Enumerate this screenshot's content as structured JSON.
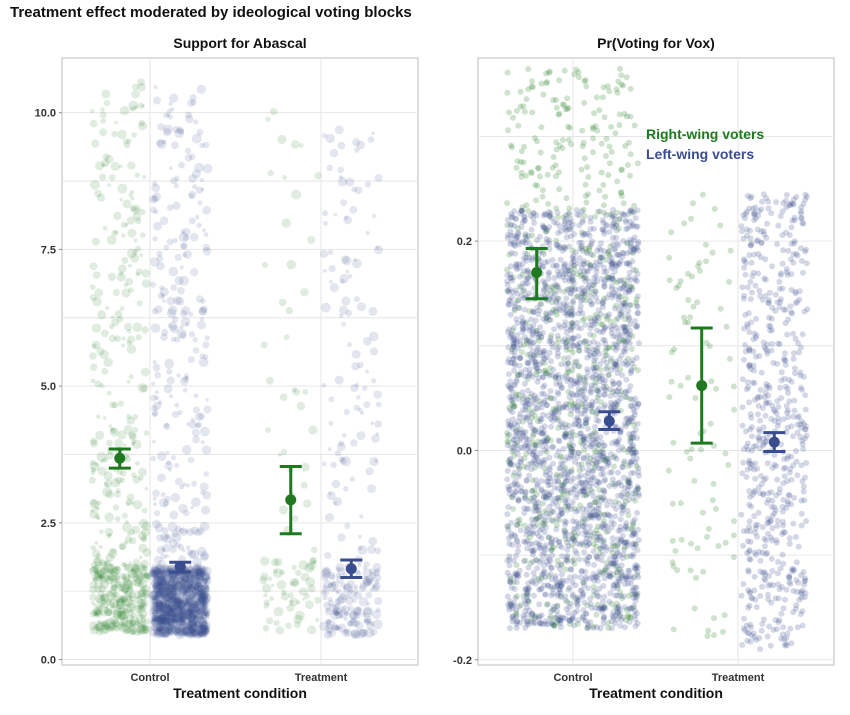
{
  "title": "Treatment effect moderated by ideological voting blocks",
  "colors": {
    "right": "#1f7a1f",
    "left": "#3a4e8f",
    "grid": "#e6e6e6",
    "border": "#bdbdbd"
  },
  "chart_data": [
    {
      "type": "scatter",
      "title": "Support for Abascal",
      "xlabel": "Treatment condition",
      "ylabel": "",
      "categories": [
        "Control",
        "Treatment"
      ],
      "ylim": [
        -0.1,
        11.0
      ],
      "yticks": [
        0.0,
        2.5,
        5.0,
        7.5,
        10.0
      ],
      "ytick_labels": [
        "0.0",
        "2.5",
        "5.0",
        "7.5",
        "10.0"
      ],
      "series": [
        {
          "name": "Right-wing voters",
          "group": "right",
          "estimates": [
            {
              "category": "Control",
              "mean": 3.68,
              "lo": 3.5,
              "hi": 3.85
            },
            {
              "category": "Treatment",
              "mean": 2.92,
              "lo": 2.3,
              "hi": 3.53
            }
          ]
        },
        {
          "name": "Left-wing voters",
          "group": "left",
          "estimates": [
            {
              "category": "Control",
              "mean": 1.7,
              "lo": 1.6,
              "hi": 1.78
            },
            {
              "category": "Treatment",
              "mean": 1.66,
              "lo": 1.5,
              "hi": 1.82
            }
          ]
        }
      ],
      "raw_points": [
        {
          "group": "right",
          "category": "Control",
          "n": 520,
          "range": [
            0.5,
            10.6
          ]
        },
        {
          "group": "left",
          "category": "Control",
          "n": 1300,
          "range": [
            0.45,
            10.6
          ]
        },
        {
          "group": "right",
          "category": "Treatment",
          "n": 90,
          "range": [
            0.5,
            10.3
          ]
        },
        {
          "group": "left",
          "category": "Treatment",
          "n": 260,
          "range": [
            0.45,
            9.7
          ]
        }
      ]
    },
    {
      "type": "scatter",
      "title": "Pr(Voting for Vox)",
      "xlabel": "Treatment condition",
      "ylabel": "",
      "categories": [
        "Control",
        "Treatment"
      ],
      "ylim": [
        -0.205,
        0.375
      ],
      "yticks": [
        -0.2,
        0.0,
        0.2
      ],
      "ytick_labels": [
        "-0.2",
        "0.0",
        "0.2"
      ],
      "legend": {
        "position": "top-right",
        "entries": [
          {
            "label": "Right-wing voters",
            "group": "right"
          },
          {
            "label": "Left-wing voters",
            "group": "left"
          }
        ]
      },
      "series": [
        {
          "name": "Right-wing voters",
          "group": "right",
          "estimates": [
            {
              "category": "Control",
              "mean": 0.17,
              "lo": 0.145,
              "hi": 0.193
            },
            {
              "category": "Treatment",
              "mean": 0.062,
              "lo": 0.007,
              "hi": 0.117
            }
          ]
        },
        {
          "name": "Left-wing voters",
          "group": "left",
          "estimates": [
            {
              "category": "Control",
              "mean": 0.028,
              "lo": 0.02,
              "hi": 0.037
            },
            {
              "category": "Treatment",
              "mean": 0.008,
              "lo": -0.001,
              "hi": 0.017
            }
          ]
        }
      ],
      "raw_points": [
        {
          "group": "right",
          "category": "Control",
          "n": 650,
          "range": [
            -0.17,
            0.365
          ]
        },
        {
          "group": "left",
          "category": "Control",
          "n": 2200,
          "range": [
            -0.17,
            0.23
          ]
        },
        {
          "group": "right",
          "category": "Treatment",
          "n": 90,
          "range": [
            -0.18,
            0.26
          ]
        },
        {
          "group": "left",
          "category": "Treatment",
          "n": 600,
          "range": [
            -0.19,
            0.245
          ]
        }
      ]
    }
  ]
}
